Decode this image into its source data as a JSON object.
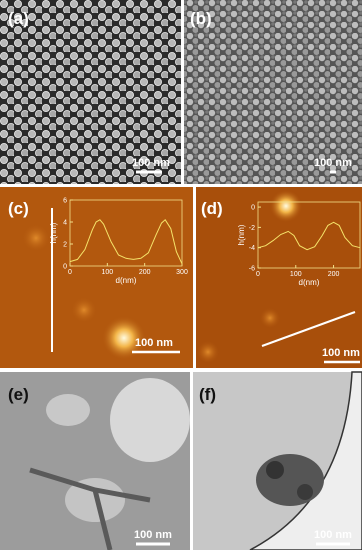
{
  "panels": [
    {
      "label": "(a)",
      "scale_bar": "100 nm"
    },
    {
      "label": "(b)",
      "scale_bar": "100 nm"
    },
    {
      "label": "(c)",
      "scale_bar": "100 nm",
      "inset": {
        "y_label": "h(nm)",
        "x_label": "d(nm)",
        "xlim": [
          0,
          300
        ],
        "ylim": [
          0,
          6
        ],
        "xticks": [
          0,
          100,
          200,
          300
        ],
        "yticks": [
          0,
          2,
          4,
          6
        ],
        "x": [
          0,
          20,
          40,
          60,
          70,
          80,
          90,
          110,
          130,
          150,
          170,
          190,
          210,
          230,
          245,
          255,
          270,
          285,
          300
        ],
        "values": [
          0.4,
          0.6,
          1.5,
          3.3,
          4.0,
          4.2,
          3.8,
          2.2,
          1.0,
          0.7,
          0.6,
          0.7,
          1.2,
          2.8,
          3.9,
          4.2,
          3.4,
          1.3,
          0.2
        ]
      }
    },
    {
      "label": "(d)",
      "scale_bar": "100 nm",
      "inset": {
        "y_label": "h(nm)",
        "x_label": "d(nm)",
        "xlim": [
          0,
          270
        ],
        "ylim": [
          -6,
          0.5
        ],
        "xticks": [
          0,
          100,
          200
        ],
        "yticks": [
          0,
          -2,
          -4,
          -6
        ],
        "x": [
          0,
          20,
          40,
          60,
          80,
          95,
          110,
          130,
          150,
          170,
          185,
          200,
          215,
          230,
          250,
          270
        ],
        "values": [
          -4.0,
          -3.8,
          -3.3,
          -2.7,
          -2.4,
          -2.8,
          -3.8,
          -4.2,
          -3.9,
          -2.8,
          -1.8,
          -1.5,
          -1.8,
          -3.0,
          -3.8,
          -4.0
        ]
      }
    },
    {
      "label": "(e)",
      "scale_bar": "100 nm"
    },
    {
      "label": "(f)",
      "scale_bar": "100 nm"
    }
  ]
}
